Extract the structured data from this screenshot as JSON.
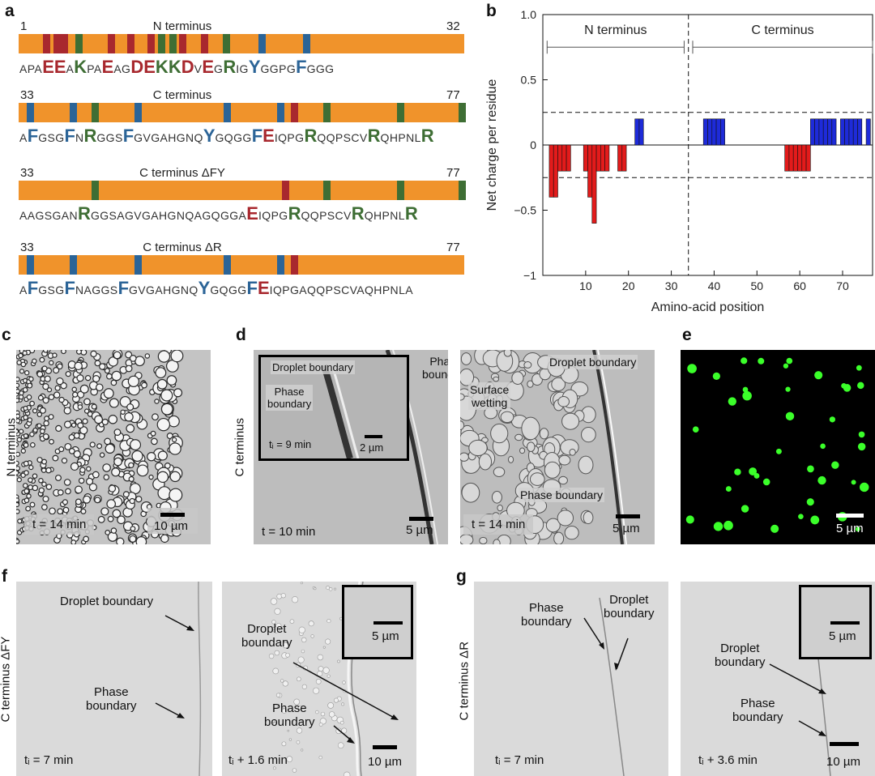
{
  "panel_a": {
    "label": "a",
    "sequences": [
      {
        "title": "N terminus",
        "start": "1",
        "end": "32",
        "tokens": [
          [
            "APA",
            "n"
          ],
          [
            "EE",
            "red"
          ],
          [
            "A",
            "n"
          ],
          [
            "K",
            "green"
          ],
          [
            "PA",
            "n"
          ],
          [
            "E",
            "red"
          ],
          [
            "AG",
            "n"
          ],
          [
            "D",
            "red"
          ],
          [
            "E",
            "red"
          ],
          [
            "K",
            "green"
          ],
          [
            "K",
            "green"
          ],
          [
            "D",
            "red"
          ],
          [
            "V",
            "n"
          ],
          [
            "E",
            "red"
          ],
          [
            "G",
            "n"
          ],
          [
            "R",
            "green"
          ],
          [
            "IG",
            "n"
          ],
          [
            "Y",
            "blue"
          ],
          [
            "GGPG",
            "n"
          ],
          [
            "F",
            "blue"
          ],
          [
            "GGG",
            "n"
          ]
        ],
        "marks": [
          [
            0.062,
            "red"
          ],
          [
            0.086,
            "red"
          ],
          [
            0.102,
            "red"
          ],
          [
            0.135,
            "green"
          ],
          [
            0.207,
            "red"
          ],
          [
            0.25,
            "red"
          ],
          [
            0.296,
            "red"
          ],
          [
            0.32,
            "green"
          ],
          [
            0.345,
            "green"
          ],
          [
            0.368,
            "red"
          ],
          [
            0.416,
            "red"
          ],
          [
            0.465,
            "green"
          ],
          [
            0.545,
            "blue"
          ],
          [
            0.645,
            "blue"
          ]
        ]
      },
      {
        "title": "C terminus",
        "start": "33",
        "end": "77",
        "tokens": [
          [
            "A",
            "n"
          ],
          [
            "F",
            "blue"
          ],
          [
            "GSG",
            "n"
          ],
          [
            "F",
            "blue"
          ],
          [
            "N",
            "n"
          ],
          [
            "R",
            "green"
          ],
          [
            "GGS",
            "n"
          ],
          [
            "F",
            "blue"
          ],
          [
            "GVGAHGNQ",
            "n"
          ],
          [
            "Y",
            "blue"
          ],
          [
            "GQGG",
            "n"
          ],
          [
            "F",
            "blue"
          ],
          [
            "E",
            "red"
          ],
          [
            "IQPG",
            "n"
          ],
          [
            "R",
            "green"
          ],
          [
            "QQPSCV",
            "n"
          ],
          [
            "R",
            "green"
          ],
          [
            "QHPNL",
            "n"
          ],
          [
            "R",
            "green"
          ]
        ],
        "marks": [
          [
            0.025,
            "blue"
          ],
          [
            0.122,
            "blue"
          ],
          [
            0.17,
            "green"
          ],
          [
            0.268,
            "blue"
          ],
          [
            0.467,
            "blue"
          ],
          [
            0.588,
            "blue"
          ],
          [
            0.618,
            "red"
          ],
          [
            0.69,
            "green"
          ],
          [
            0.857,
            "green"
          ],
          [
            0.995,
            "green"
          ]
        ]
      },
      {
        "title": "C terminus ΔFY",
        "start": "33",
        "end": "77",
        "tokens": [
          [
            "AAGSGAN",
            "n"
          ],
          [
            "R",
            "green"
          ],
          [
            "GGSAGVGAHGNQAGQGGA",
            "n"
          ],
          [
            "E",
            "red"
          ],
          [
            "IQPG",
            "n"
          ],
          [
            "R",
            "green"
          ],
          [
            "QQPSCV",
            "n"
          ],
          [
            "R",
            "green"
          ],
          [
            "QHPNL",
            "n"
          ],
          [
            "R",
            "green"
          ]
        ],
        "marks": [
          [
            0.17,
            "green"
          ],
          [
            0.598,
            "red"
          ],
          [
            0.69,
            "green"
          ],
          [
            0.857,
            "green"
          ],
          [
            0.995,
            "green"
          ]
        ]
      },
      {
        "title": "C terminus ΔR",
        "start": "33",
        "end": "77",
        "tokens": [
          [
            "A",
            "n"
          ],
          [
            "F",
            "blue"
          ],
          [
            "GSG",
            "n"
          ],
          [
            "F",
            "blue"
          ],
          [
            "NAGGS",
            "n"
          ],
          [
            "F",
            "blue"
          ],
          [
            "GVGAHGNQ",
            "n"
          ],
          [
            "Y",
            "blue"
          ],
          [
            "GQGG",
            "n"
          ],
          [
            "F",
            "blue"
          ],
          [
            "E",
            "red"
          ],
          [
            "IQPGAQQPSCVAQHPNLA",
            "n"
          ]
        ],
        "marks": [
          [
            0.025,
            "blue"
          ],
          [
            0.122,
            "blue"
          ],
          [
            0.268,
            "blue"
          ],
          [
            0.467,
            "blue"
          ],
          [
            0.588,
            "blue"
          ],
          [
            0.618,
            "red"
          ]
        ]
      }
    ]
  },
  "panel_b": {
    "label": "b"
  },
  "chart_data": {
    "type": "bar",
    "title": "",
    "xlabel": "Amino-acid position",
    "ylabel": "Net charge per residue",
    "xlim": [
      0,
      77
    ],
    "ylim": [
      -1,
      1
    ],
    "xticks": [
      10,
      20,
      30,
      40,
      50,
      60,
      70
    ],
    "yticks": [
      -1,
      -0.5,
      0,
      0.5,
      1.0
    ],
    "ytick_labels": [
      "−1",
      "−0.5",
      "0",
      "0.5",
      "1.0"
    ],
    "threshold_lines": [
      0.25,
      -0.25
    ],
    "divider_x": 34,
    "region_labels": [
      {
        "text": "N terminus",
        "from": 1,
        "to": 33
      },
      {
        "text": "C terminus",
        "from": 35,
        "to": 77
      }
    ],
    "bar_width": 1,
    "series": [
      {
        "name": "negative",
        "color": "#E31B1B",
        "x": [
          2,
          3,
          4,
          5,
          6,
          10,
          11,
          12,
          13,
          14,
          15,
          18,
          19,
          57,
          58,
          59,
          60,
          61,
          62
        ],
        "values": [
          -0.4,
          -0.4,
          -0.2,
          -0.2,
          -0.2,
          -0.2,
          -0.4,
          -0.6,
          -0.2,
          -0.2,
          -0.2,
          -0.2,
          -0.2,
          -0.2,
          -0.2,
          -0.2,
          -0.2,
          -0.2,
          -0.2
        ]
      },
      {
        "name": "positive",
        "color": "#1E2BD9",
        "x": [
          22,
          23,
          38,
          39,
          40,
          41,
          42,
          63,
          64,
          65,
          66,
          67,
          68,
          70,
          71,
          72,
          73,
          74,
          76
        ],
        "values": [
          0.2,
          0.2,
          0.2,
          0.2,
          0.2,
          0.2,
          0.2,
          0.2,
          0.2,
          0.2,
          0.2,
          0.2,
          0.2,
          0.2,
          0.2,
          0.2,
          0.2,
          0.2,
          0.2
        ]
      }
    ]
  },
  "panel_c": {
    "label": "c",
    "side": "N terminus",
    "time": "t = 14 min",
    "scale": "10 µm"
  },
  "panel_d": {
    "label": "d",
    "side": "C terminus",
    "left": {
      "time": "t = 10 min",
      "scale": "5 µm",
      "phase_boundary": "Phase\nboundary",
      "inset": {
        "droplet_boundary": "Droplet boundary",
        "phase_boundary": "Phase\nboundary",
        "time": "tᵢ = 9 min",
        "scale": "2 µm"
      }
    },
    "right": {
      "time": "t = 14 min",
      "scale": "5 µm",
      "droplet_boundary": "Droplet boundary",
      "surface_wetting": "Surface\nwetting",
      "phase_boundary": "Phase boundary"
    }
  },
  "panel_e": {
    "label": "e",
    "scale": "5 µm",
    "droplet_color": "#3BFF2A"
  },
  "panel_f": {
    "label": "f",
    "side": "C terminus ΔFY",
    "left": {
      "time": "tᵢ = 7 min",
      "droplet_boundary": "Droplet boundary",
      "phase_boundary": "Phase\nboundary"
    },
    "right": {
      "time": "tᵢ + 1.6 min",
      "scale": "10 µm",
      "inset_scale": "5 µm",
      "droplet_boundary": "Droplet\nboundary",
      "phase_boundary": "Phase\nboundary"
    }
  },
  "panel_g": {
    "label": "g",
    "side": "C terminus ΔR",
    "left": {
      "time": "tᵢ = 7 min",
      "phase_boundary": "Phase\nboundary",
      "droplet_boundary": "Droplet\nboundary"
    },
    "right": {
      "time": "tᵢ + 3.6 min",
      "scale": "10 µm",
      "inset_scale": "5 µm",
      "droplet_boundary": "Droplet\nboundary",
      "phase_boundary": "Phase\nboundary"
    }
  }
}
